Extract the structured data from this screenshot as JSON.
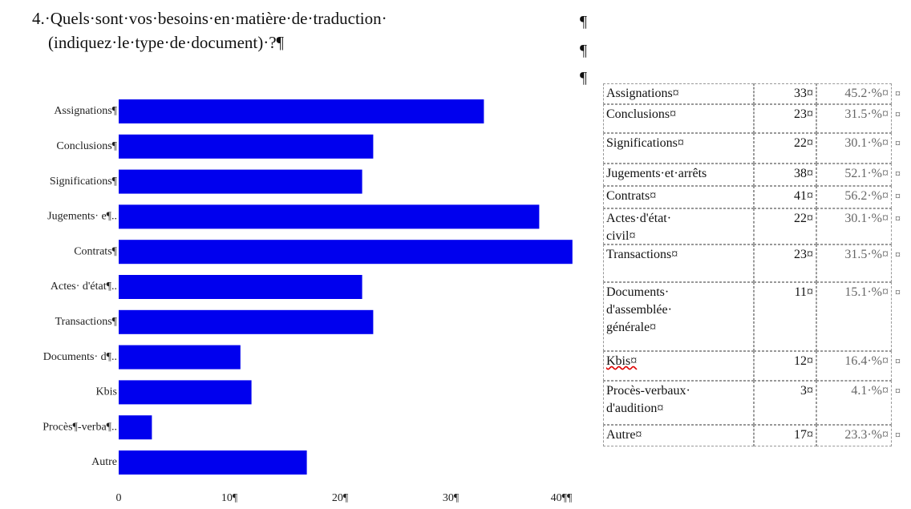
{
  "heading": {
    "lines": [
      "4.·Quels·sont·vos·besoins·en·matière·de·traduction·",
      "(indiquez·le·type·de·document)·?¶"
    ]
  },
  "paragraph_marks": [
    "¶",
    "¶",
    "¶"
  ],
  "chart_data": {
    "type": "bar",
    "orientation": "horizontal",
    "color": "#0000ee",
    "categories": [
      "Assignations¶",
      "Conclusions¶",
      "Significations¶",
      "Jugements· e¶..",
      "Contrats¶",
      "Actes· d'état¶..",
      "Transactions¶",
      "Documents· d¶..",
      "Kbis",
      "Procès¶-verba¶..",
      "Autre"
    ],
    "values": [
      33,
      23,
      22,
      38,
      41,
      22,
      23,
      11,
      12,
      3,
      17
    ],
    "xlim": [
      0,
      40
    ],
    "xticks": [
      0,
      {
        "value": 10,
        "label": "10¶"
      },
      {
        "value": 20,
        "label": "20¶"
      },
      {
        "value": 30,
        "label": "30¶"
      },
      {
        "value": 40,
        "label": "40¶¶"
      }
    ]
  },
  "table": {
    "rows": [
      [
        [
          "Assignations¤"
        ],
        "33¤",
        "45.2·%¤"
      ],
      [
        [
          "Conclusions¤"
        ],
        "23¤",
        "31.5·%¤"
      ],
      [
        [
          "Significations¤"
        ],
        "22¤",
        "30.1·%¤"
      ],
      [
        [
          "Jugements·et·arrêts"
        ],
        "38¤",
        "52.1·%¤"
      ],
      [
        [
          "Contrats¤"
        ],
        "41¤",
        "56.2·%¤"
      ],
      [
        [
          "Actes·d'état·",
          "civil¤"
        ],
        "22¤",
        "30.1·%¤"
      ],
      [
        [
          "Transactions¤"
        ],
        "23¤",
        "31.5·%¤"
      ],
      [
        [
          "Documents·",
          "d'assemblée·",
          "générale¤"
        ],
        "11¤",
        "15.1·%¤"
      ],
      [
        [
          "Kbis¤"
        ],
        "12¤",
        "16.4·%¤"
      ],
      [
        [
          "Procès-verbaux·",
          "d'audition¤"
        ],
        "3¤",
        "4.1·%¤"
      ],
      [
        [
          "Autre¤"
        ],
        "17¤",
        "23.3·%¤"
      ]
    ],
    "row_end": "¤"
  }
}
